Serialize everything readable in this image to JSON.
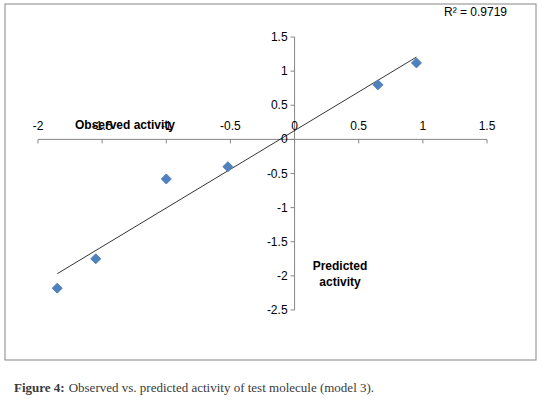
{
  "chart_data": {
    "type": "scatter",
    "x_label": "Observed activity",
    "y_label": "Predicted activity",
    "annotation": "R² = 0.9719",
    "x": [
      -1.85,
      -1.55,
      -1.0,
      -0.52,
      0.65,
      0.95
    ],
    "values": [
      -2.18,
      -1.75,
      -0.58,
      -0.4,
      0.8,
      1.12
    ],
    "color": "#4f81bd",
    "marker": "diamond",
    "xlim": [
      -2,
      1.5
    ],
    "ylim": [
      -2.5,
      1.5
    ],
    "xticks": [
      -2,
      -1.5,
      -1,
      -0.5,
      0,
      0.5,
      1,
      1.5
    ],
    "yticks": [
      -2.5,
      -2,
      -1.5,
      -1,
      -0.5,
      0,
      0.5,
      1,
      1.5
    ],
    "grid": false
  },
  "caption": {
    "label": "Figure 4:",
    "text": "Observed vs. predicted activity of test molecule (model 3)."
  }
}
